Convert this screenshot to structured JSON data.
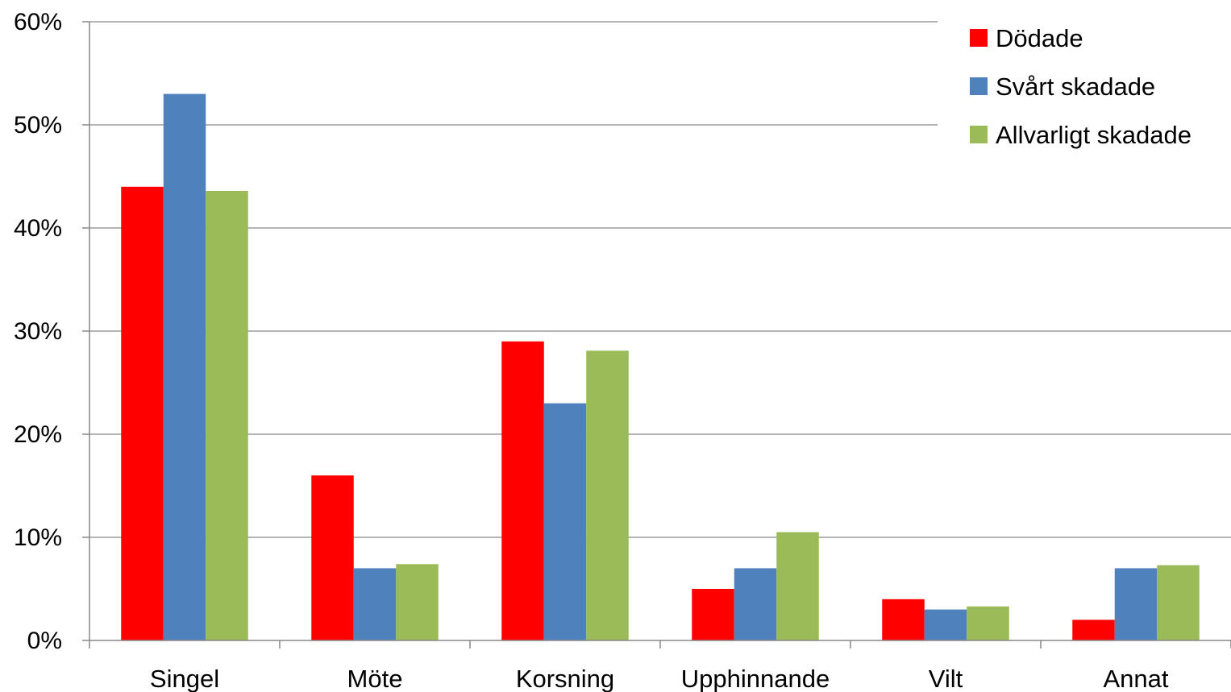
{
  "chart_data": {
    "type": "bar",
    "categories": [
      "Singel",
      "Möte",
      "Korsning",
      "Upphinnande",
      "Vilt",
      "Annat"
    ],
    "series": [
      {
        "name": "Dödade",
        "color": "#ff0000",
        "values": [
          44,
          16,
          29,
          5,
          4,
          2
        ]
      },
      {
        "name": "Svårt skadade",
        "color": "#4f81bd",
        "values": [
          53,
          7,
          23,
          7,
          3,
          7
        ]
      },
      {
        "name": "Allvarligt skadade",
        "color": "#9bbb59",
        "values": [
          43.6,
          7.4,
          28.1,
          10.5,
          3.3,
          7.3
        ]
      }
    ],
    "ylim": [
      0,
      60
    ],
    "yticks": [
      0,
      10,
      20,
      30,
      40,
      50,
      60
    ],
    "ytick_labels": [
      "0%",
      "10%",
      "20%",
      "30%",
      "40%",
      "50%",
      "60%"
    ],
    "grid": true,
    "legend": "top-right",
    "title": "",
    "xlabel": "",
    "ylabel": ""
  }
}
